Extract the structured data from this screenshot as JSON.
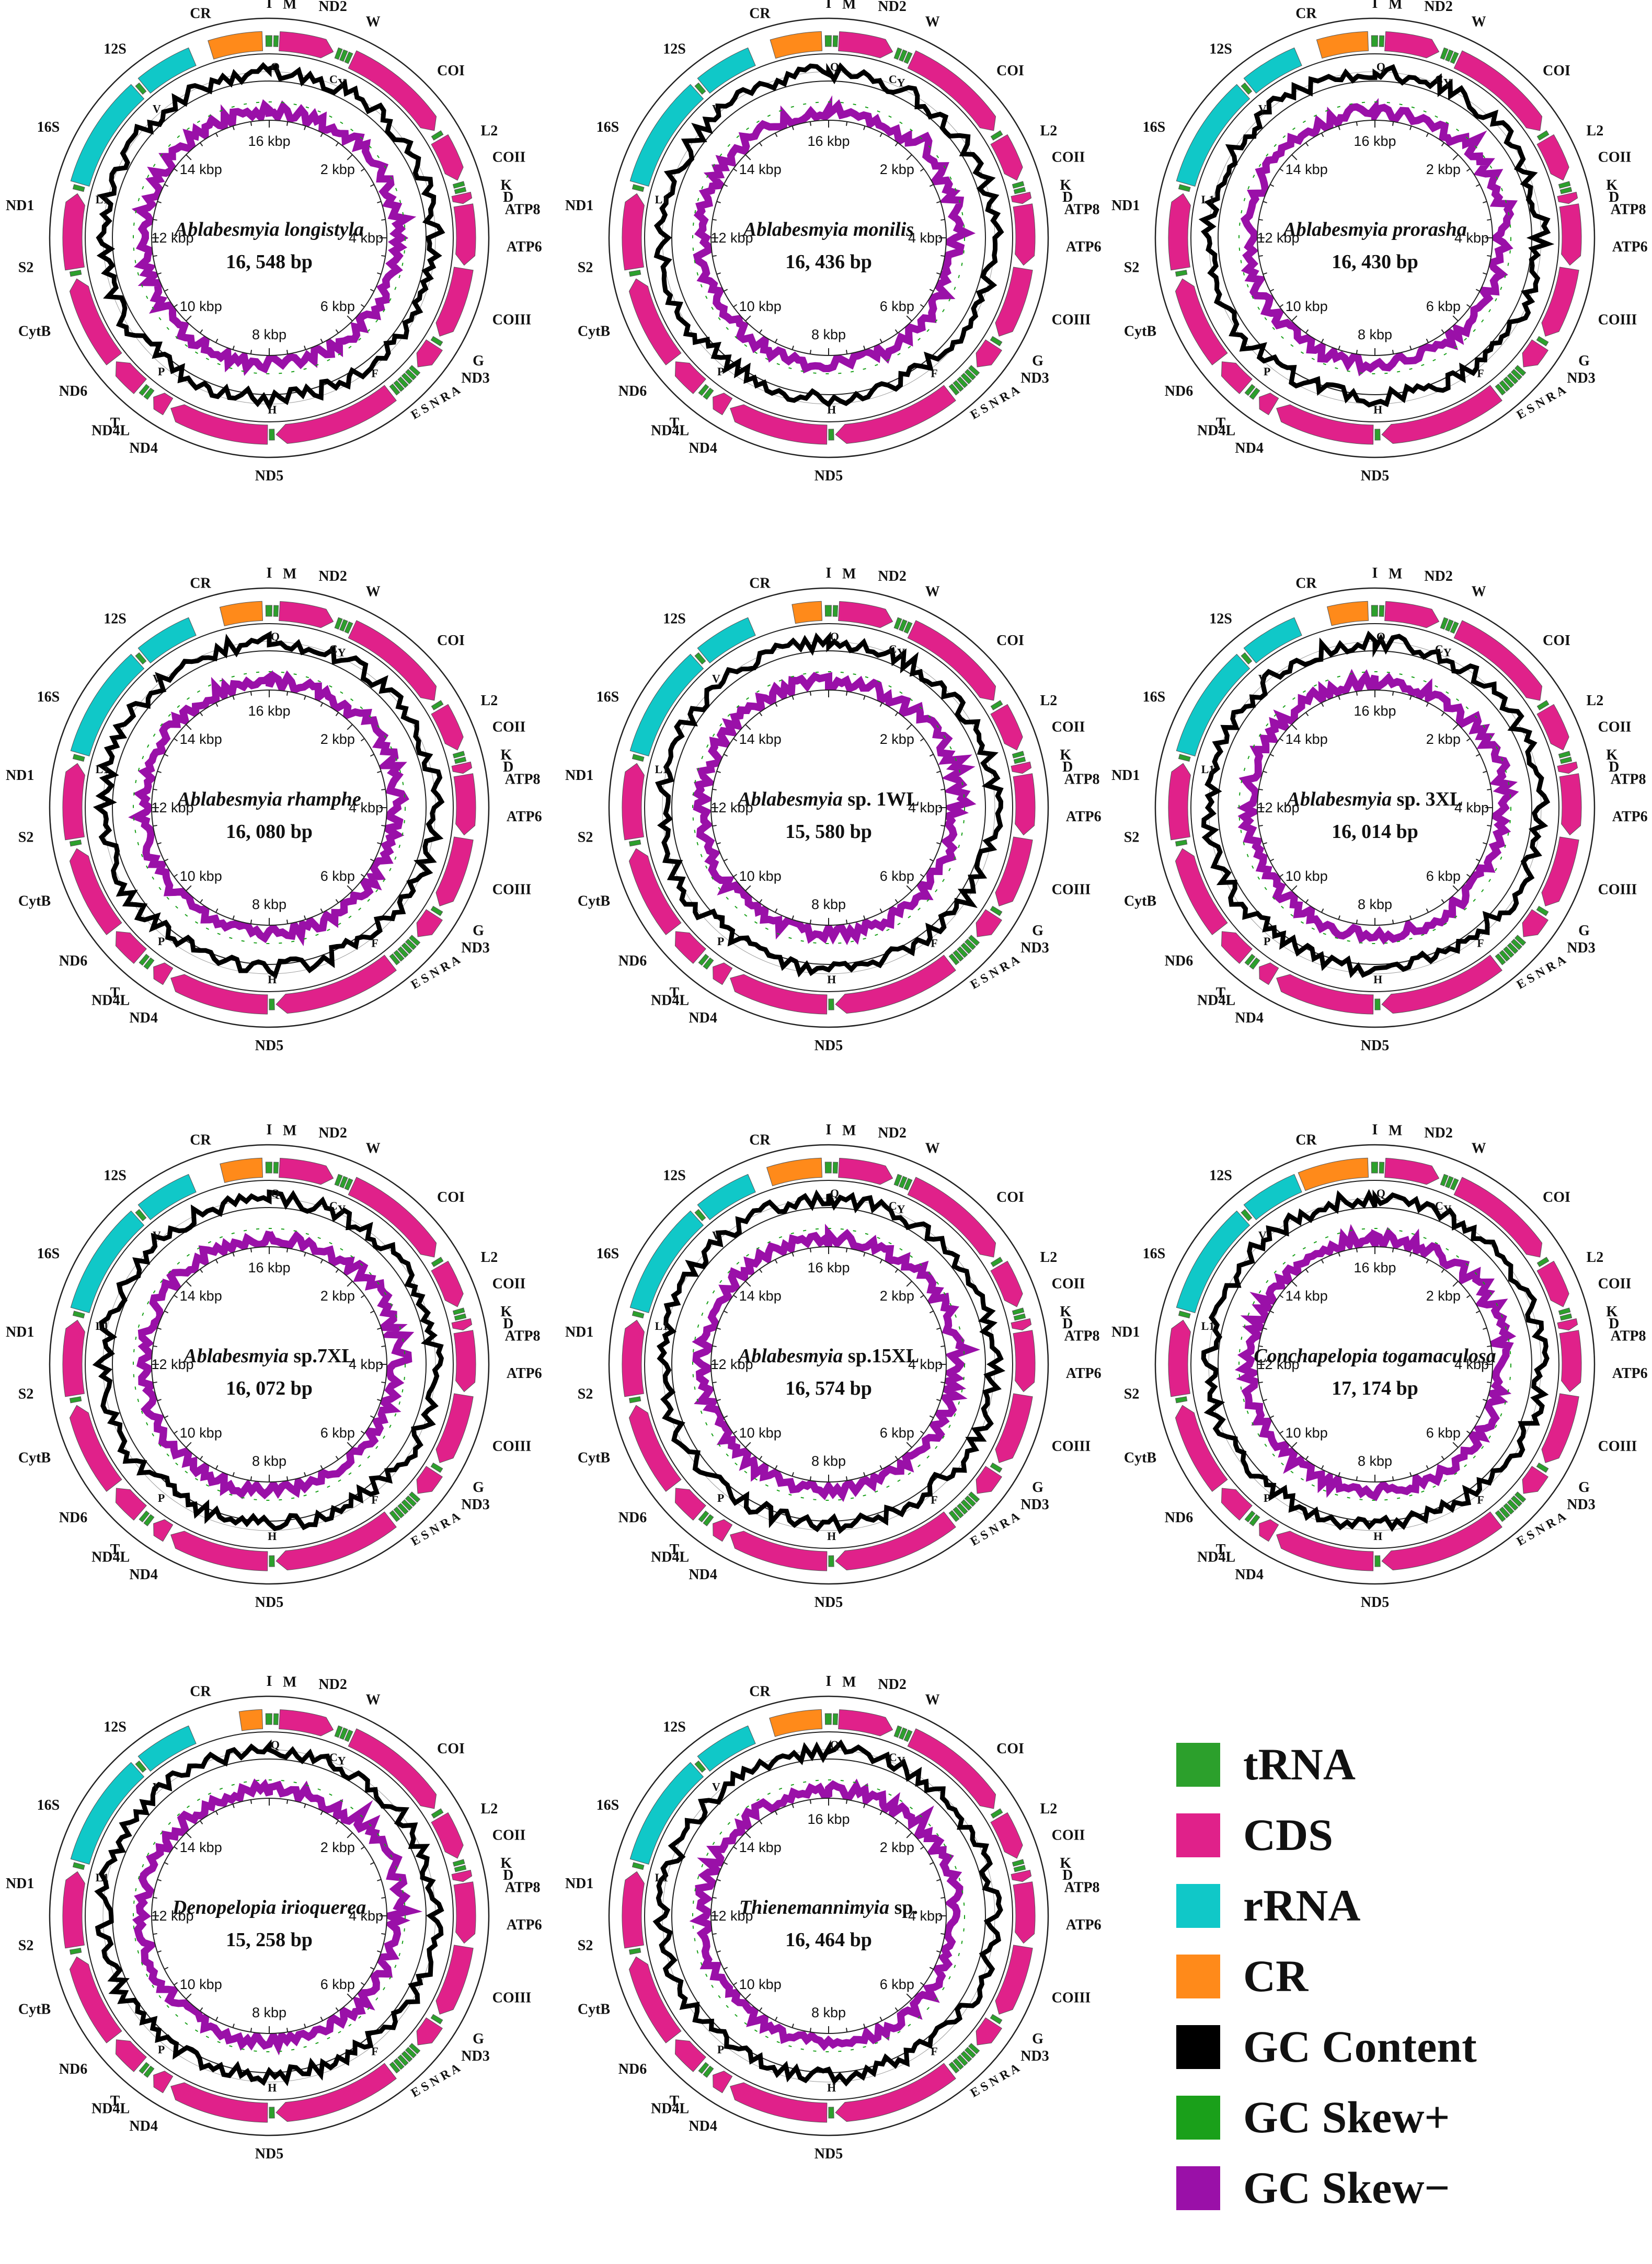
{
  "colors": {
    "tRNA": "#2ca02c",
    "CDS": "#e0218a",
    "rRNA": "#10c8c8",
    "CR": "#ff8a1a",
    "gc_content": "#000000",
    "gc_skew_pos": "#1aa01a",
    "gc_skew_neg": "#9a10a8"
  },
  "legend": [
    {
      "key": "tRNA",
      "label": "tRNA"
    },
    {
      "key": "CDS",
      "label": "CDS"
    },
    {
      "key": "rRNA",
      "label": "rRNA"
    },
    {
      "key": "CR",
      "label": "CR"
    },
    {
      "key": "gc_content",
      "label": "GC Content"
    },
    {
      "key": "gc_skew_pos",
      "label": "GC Skew+"
    },
    {
      "key": "gc_skew_neg",
      "label": "GC Skew−"
    }
  ],
  "maps": [
    {
      "genus": "Ablabesmyia",
      "epithet": "longistyla",
      "italic_all": true,
      "size": "16, 548 bp",
      "length_bp": 16548,
      "tick_labels": [
        "16 kbp",
        "2 kbp",
        "4 kbp",
        "6 kbp",
        "8 kbp",
        "10 kbp",
        "12 kbp",
        "14 kbp"
      ]
    },
    {
      "genus": "Ablabesmyia",
      "epithet": "monilis",
      "italic_all": true,
      "size": "16, 436 bp",
      "length_bp": 16436,
      "tick_labels": [
        "16 kbp",
        "2 kbp",
        "4 kbp",
        "6 kbp",
        "8 kbp",
        "10 kbp",
        "12 kbp",
        "14 kbp"
      ]
    },
    {
      "genus": "Ablabesmyia",
      "epithet": "prorasha",
      "italic_all": true,
      "size": "16, 430 bp",
      "length_bp": 16430,
      "tick_labels": [
        "16 kbp",
        "2 kbp",
        "4 kbp",
        "6 kbp",
        "8 kbp",
        "10 kbp",
        "12 kbp",
        "14 kbp"
      ]
    },
    {
      "genus": "Ablabesmyia",
      "epithet": "rhamphe",
      "italic_all": true,
      "size": "16, 080 bp",
      "length_bp": 16080,
      "tick_labels": [
        "16 kbp",
        "2 kbp",
        "4 kbp",
        "6 kbp",
        "8 kbp",
        "10 kbp",
        "12 kbp",
        "14 kbp"
      ]
    },
    {
      "genus": "Ablabesmyia",
      "epithet": "sp. 1WL",
      "italic_all": false,
      "size": "15, 580 bp",
      "length_bp": 15580,
      "tick_labels": [
        "",
        "2 kbp",
        "4 kbp",
        "6 kbp",
        "8 kbp",
        "10 kbp",
        "12 kbp",
        "14 kbp"
      ]
    },
    {
      "genus": "Ablabesmyia",
      "epithet": "sp. 3XL",
      "italic_all": false,
      "size": "16, 014 bp",
      "length_bp": 16014,
      "tick_labels": [
        "16 kbp",
        "2 kbp",
        "4 kbp",
        "6 kbp",
        "8 kbp",
        "10 kbp",
        "12 kbp",
        "14 kbp"
      ]
    },
    {
      "genus": "Ablabesmyia",
      "epithet": "sp.7XL",
      "italic_all": false,
      "size": "16, 072 bp",
      "length_bp": 16072,
      "tick_labels": [
        "16 kbp",
        "2 kbp",
        "4 kbp",
        "6 kbp",
        "8 kbp",
        "10 kbp",
        "12 kbp",
        "14 kbp"
      ]
    },
    {
      "genus": "Ablabesmyia",
      "epithet": "sp.15XL",
      "italic_all": false,
      "size": "16, 574 bp",
      "length_bp": 16574,
      "tick_labels": [
        "16 kbp",
        "2 kbp",
        "4 kbp",
        "6 kbp",
        "8 kbp",
        "10 kbp",
        "12 kbp",
        "14 kbp"
      ]
    },
    {
      "genus": "Conchapelopia",
      "epithet": "togamaculosa",
      "italic_all": true,
      "size": "17, 174 bp",
      "length_bp": 17174,
      "tick_labels": [
        "16 kbp",
        "2 kbp",
        "4 kbp",
        "6 kbp",
        "8 kbp",
        "10 kbp",
        "12 kbp",
        "14 kbp"
      ]
    },
    {
      "genus": "Denopelopia",
      "epithet": "irioquerea",
      "italic_all": true,
      "size": "15, 258 bp",
      "length_bp": 15258,
      "tick_labels": [
        "",
        "2 kbp",
        "4 kbp",
        "6 kbp",
        "8 kbp",
        "10 kbp",
        "12 kbp",
        "14 kbp"
      ]
    },
    {
      "genus": "Thienemannimyia",
      "epithet": "sp.",
      "italic_all": false,
      "size": "16, 464 bp",
      "length_bp": 16464,
      "tick_labels": [
        "16 kbp",
        "2 kbp",
        "4 kbp",
        "6 kbp",
        "8 kbp",
        "10 kbp",
        "12 kbp",
        "14 kbp"
      ]
    }
  ],
  "segments": [
    {
      "type": "CR",
      "start": -22,
      "end": -2
    },
    {
      "type": "tRNA",
      "start": -1,
      "end": 0.8
    },
    {
      "type": "tRNA",
      "start": 1.3,
      "end": 2.6
    },
    {
      "type": "CDS",
      "start": 3,
      "end": 19
    },
    {
      "type": "tRNA",
      "start": 20,
      "end": 21.2
    },
    {
      "type": "tRNA",
      "start": 21.6,
      "end": 22.8
    },
    {
      "type": "tRNA",
      "start": 23.2,
      "end": 24.4
    },
    {
      "type": "CDS",
      "start": 25,
      "end": 57
    },
    {
      "type": "tRNA",
      "start": 58,
      "end": 59.3
    },
    {
      "type": "CDS",
      "start": 60,
      "end": 73
    },
    {
      "type": "tRNA",
      "start": 73.8,
      "end": 75
    },
    {
      "type": "tRNA",
      "start": 75.5,
      "end": 76.7
    },
    {
      "type": "CDS",
      "start": 77.2,
      "end": 80
    },
    {
      "type": "CDS",
      "start": 80.5,
      "end": 98
    },
    {
      "type": "CDS",
      "start": 99,
      "end": 120
    },
    {
      "type": "tRNA",
      "start": 121,
      "end": 122.3
    },
    {
      "type": "CDS",
      "start": 123,
      "end": 131
    },
    {
      "type": "tRNA",
      "start": 131.8,
      "end": 133
    },
    {
      "type": "tRNA",
      "start": 133.4,
      "end": 134.6
    },
    {
      "type": "tRNA",
      "start": 135,
      "end": 136.2
    },
    {
      "type": "tRNA",
      "start": 136.6,
      "end": 137.8
    },
    {
      "type": "tRNA",
      "start": 138.2,
      "end": 139.4
    },
    {
      "type": "tRNA",
      "start": 139.8,
      "end": 141
    },
    {
      "type": "CDS",
      "start": 142,
      "end": 178
    },
    {
      "type": "tRNA",
      "start": 178.5,
      "end": 180
    },
    {
      "type": "CDS",
      "start": 180.5,
      "end": 210
    },
    {
      "type": "CDS",
      "start": 211,
      "end": 216
    },
    {
      "type": "tRNA",
      "start": 217,
      "end": 218.3
    },
    {
      "type": "tRNA",
      "start": 218.8,
      "end": 220
    },
    {
      "type": "CDS",
      "start": 221,
      "end": 231
    },
    {
      "type": "CDS",
      "start": 232,
      "end": 258
    },
    {
      "type": "tRNA",
      "start": 259,
      "end": 260.3
    },
    {
      "type": "CDS",
      "start": 261,
      "end": 283
    },
    {
      "type": "tRNA",
      "start": 284,
      "end": 285.3
    },
    {
      "type": "rRNA",
      "start": 286,
      "end": 318
    },
    {
      "type": "tRNA",
      "start": 318.6,
      "end": 320
    },
    {
      "type": "rRNA",
      "start": 320.6,
      "end": 337
    }
  ],
  "gene_labels": [
    {
      "text": "CR",
      "angle": -17
    },
    {
      "text": "I",
      "angle": 0
    },
    {
      "text": "M",
      "angle": 5
    },
    {
      "text": "ND2",
      "angle": 12
    },
    {
      "text": "W",
      "angle": 24
    },
    {
      "text": "COI",
      "angle": 45
    },
    {
      "text": "L2",
      "angle": 63
    },
    {
      "text": "COII",
      "angle": 70
    },
    {
      "text": "K",
      "angle": 77
    },
    {
      "text": "D",
      "angle": 80
    },
    {
      "text": "ATP8",
      "angle": 83
    },
    {
      "text": "ATP6",
      "angle": 92
    },
    {
      "text": "COIII",
      "angle": 110
    },
    {
      "text": "G",
      "angle": 121
    },
    {
      "text": "ND3",
      "angle": 126
    },
    {
      "text": "ESNRA",
      "angle": 140
    },
    {
      "text": "ND5",
      "angle": 180
    },
    {
      "text": "ND4",
      "angle": 208
    },
    {
      "text": "ND4L",
      "angle": 216
    },
    {
      "text": "T",
      "angle": 219
    },
    {
      "text": "ND6",
      "angle": 230
    },
    {
      "text": "CytB",
      "angle": 247
    },
    {
      "text": "S2",
      "angle": 263
    },
    {
      "text": "ND1",
      "angle": 278
    },
    {
      "text": "16S",
      "angle": 298
    },
    {
      "text": "12S",
      "angle": 323
    }
  ],
  "inner_labels": [
    {
      "text": "Q",
      "angle": 2
    },
    {
      "text": "C",
      "angle": 22
    },
    {
      "text": "Y",
      "angle": 25
    },
    {
      "text": "F",
      "angle": 142
    },
    {
      "text": "H",
      "angle": 179
    },
    {
      "text": "P",
      "angle": 219
    },
    {
      "text": "V",
      "angle": 319
    },
    {
      "text": "L1",
      "angle": 283
    }
  ]
}
